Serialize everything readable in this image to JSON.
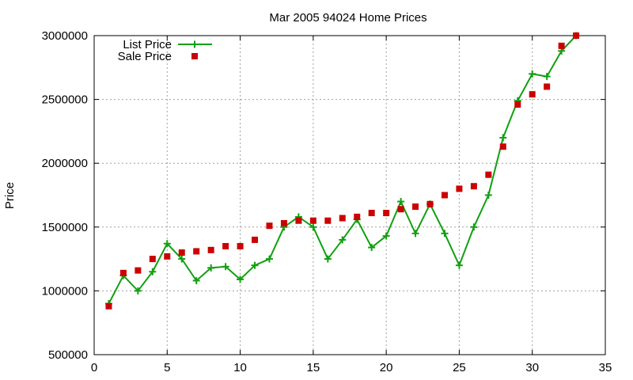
{
  "chart_data": {
    "type": "line",
    "title": "Mar 2005 94024 Home Prices",
    "xlabel": "",
    "ylabel": "Price",
    "xlim": [
      0,
      35
    ],
    "ylim": [
      500000,
      3000000
    ],
    "xticks": [
      0,
      5,
      10,
      15,
      20,
      25,
      30,
      35
    ],
    "yticks": [
      500000,
      1000000,
      1500000,
      2000000,
      2500000,
      3000000
    ],
    "grid": true,
    "legend_position": "top-left",
    "series": [
      {
        "name": "List Price",
        "style": "line-with-plus-markers",
        "color": "#11a011",
        "x": [
          1,
          2,
          3,
          4,
          5,
          6,
          7,
          8,
          9,
          10,
          11,
          12,
          13,
          14,
          15,
          16,
          17,
          18,
          19,
          20,
          21,
          22,
          23,
          24,
          25,
          26,
          27,
          28,
          29,
          30,
          31,
          32,
          33
        ],
        "values": [
          900000,
          1120000,
          1000000,
          1150000,
          1370000,
          1250000,
          1080000,
          1180000,
          1190000,
          1090000,
          1200000,
          1250000,
          1500000,
          1580000,
          1500000,
          1250000,
          1400000,
          1560000,
          1340000,
          1430000,
          1700000,
          1450000,
          1680000,
          1450000,
          1200000,
          1500000,
          1750000,
          2200000,
          2490000,
          2700000,
          2680000,
          2880000,
          3000000
        ]
      },
      {
        "name": "Sale Price",
        "style": "square-markers",
        "color": "#cc0000",
        "x": [
          1,
          2,
          3,
          4,
          5,
          6,
          7,
          8,
          9,
          10,
          11,
          12,
          13,
          14,
          15,
          16,
          17,
          18,
          19,
          20,
          21,
          22,
          23,
          24,
          25,
          26,
          27,
          28,
          29,
          30,
          31,
          32,
          33
        ],
        "values": [
          880000,
          1140000,
          1160000,
          1250000,
          1270000,
          1300000,
          1310000,
          1320000,
          1350000,
          1350000,
          1400000,
          1510000,
          1530000,
          1550000,
          1550000,
          1550000,
          1570000,
          1580000,
          1610000,
          1610000,
          1640000,
          1660000,
          1680000,
          1750000,
          1800000,
          1820000,
          1910000,
          2130000,
          2460000,
          2540000,
          2600000,
          2920000,
          3000000
        ]
      }
    ]
  }
}
